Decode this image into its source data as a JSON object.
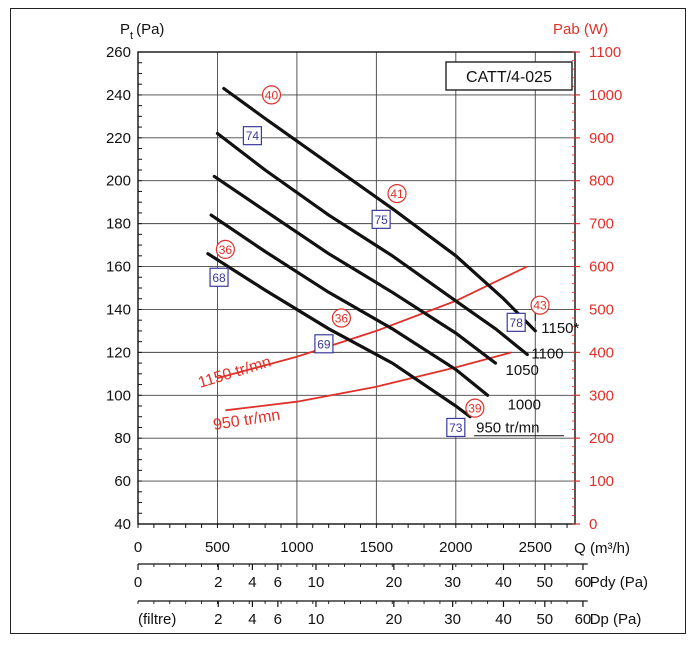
{
  "chart_data": {
    "type": "line",
    "title": "CATT/4-025",
    "xlabel": "Q (m³/h)",
    "ylabel": "Pt (Pa)",
    "ylabel_sub": "t",
    "ylabel_main": "P",
    "ylabel_unit": "(Pa)",
    "y2label": "Pab (W)",
    "xlim": [
      0,
      2750
    ],
    "ylim": [
      40,
      260
    ],
    "y2lim": [
      0,
      1100
    ],
    "grid": true,
    "x_ticks": [
      0,
      500,
      1000,
      1500,
      2000,
      2500
    ],
    "y_ticks": [
      40,
      60,
      80,
      100,
      120,
      140,
      160,
      180,
      200,
      220,
      240,
      260
    ],
    "y2_ticks": [
      0,
      100,
      200,
      300,
      400,
      500,
      600,
      700,
      800,
      900,
      1000,
      1100
    ],
    "pressure_curves": [
      {
        "name": "1150*",
        "x": [
          540,
          800,
          1200,
          1600,
          2000,
          2300,
          2500
        ],
        "y": [
          243,
          229,
          208,
          187,
          165,
          145,
          130
        ]
      },
      {
        "name": "1100",
        "x": [
          500,
          800,
          1200,
          1600,
          2000,
          2250,
          2450
        ],
        "y": [
          222,
          205,
          184,
          165,
          144,
          131,
          119
        ]
      },
      {
        "name": "1050",
        "x": [
          480,
          800,
          1200,
          1600,
          2000,
          2250
        ],
        "y": [
          202,
          186,
          166,
          148,
          129,
          115
        ]
      },
      {
        "name": "1000",
        "x": [
          460,
          800,
          1200,
          1600,
          2000,
          2200
        ],
        "y": [
          184,
          167,
          148,
          131,
          112,
          100
        ]
      },
      {
        "name": "950 tr/mn",
        "x": [
          440,
          800,
          1200,
          1600,
          2000,
          2090
        ],
        "y": [
          166,
          149,
          131,
          115,
          95,
          90
        ]
      }
    ],
    "power_curves": [
      {
        "name": "1150 tr/mn",
        "x": [
          500,
          1000,
          1500,
          2000,
          2450
        ],
        "y": [
          340,
          390,
          450,
          520,
          600
        ]
      },
      {
        "name": "950 tr/mn",
        "x": [
          550,
          1000,
          1500,
          2000,
          2350
        ],
        "y": [
          265,
          285,
          320,
          365,
          400
        ]
      }
    ],
    "sound_markers_red": [
      {
        "label": "40",
        "x": 840,
        "y": 240
      },
      {
        "label": "41",
        "x": 1630,
        "y": 194
      },
      {
        "label": "36",
        "x": 550,
        "y": 168
      },
      {
        "label": "36",
        "x": 1280,
        "y": 136
      },
      {
        "label": "43",
        "x": 2530,
        "y": 142
      },
      {
        "label": "39",
        "x": 2120,
        "y": 94
      }
    ],
    "sound_markers_blue": [
      {
        "label": "74",
        "x": 720,
        "y": 221
      },
      {
        "label": "75",
        "x": 1530,
        "y": 182
      },
      {
        "label": "68",
        "x": 510,
        "y": 155
      },
      {
        "label": "69",
        "x": 1170,
        "y": 124
      },
      {
        "label": "78",
        "x": 2380,
        "y": 134
      },
      {
        "label": "73",
        "x": 2000,
        "y": 85
      }
    ],
    "pdy_scale": {
      "label": "Pdy (Pa)",
      "ticks": [
        {
          "label": "0",
          "x": 0
        },
        {
          "label": "2",
          "x": 505
        },
        {
          "label": "4",
          "x": 720
        },
        {
          "label": "6",
          "x": 880
        },
        {
          "label": "10",
          "x": 1120
        },
        {
          "label": "20",
          "x": 1610
        },
        {
          "label": "30",
          "x": 1980
        },
        {
          "label": "40",
          "x": 2300
        },
        {
          "label": "50",
          "x": 2560
        },
        {
          "label": "60",
          "x": 2800
        }
      ]
    },
    "dp_scale": {
      "label": "Dp (Pa)",
      "prefix": "(filtre)",
      "ticks": [
        {
          "label": "2",
          "x": 505
        },
        {
          "label": "4",
          "x": 720
        },
        {
          "label": "6",
          "x": 880
        },
        {
          "label": "10",
          "x": 1120
        },
        {
          "label": "20",
          "x": 1610
        },
        {
          "label": "30",
          "x": 1980
        },
        {
          "label": "40",
          "x": 2300
        },
        {
          "label": "50",
          "x": 2560
        },
        {
          "label": "60",
          "x": 2800
        }
      ]
    },
    "colors": {
      "pressure": "#111111",
      "power": "#e0302a",
      "red_marker": "#e0302a",
      "blue_marker": "#3a3a9a",
      "grid": "#444444"
    }
  }
}
